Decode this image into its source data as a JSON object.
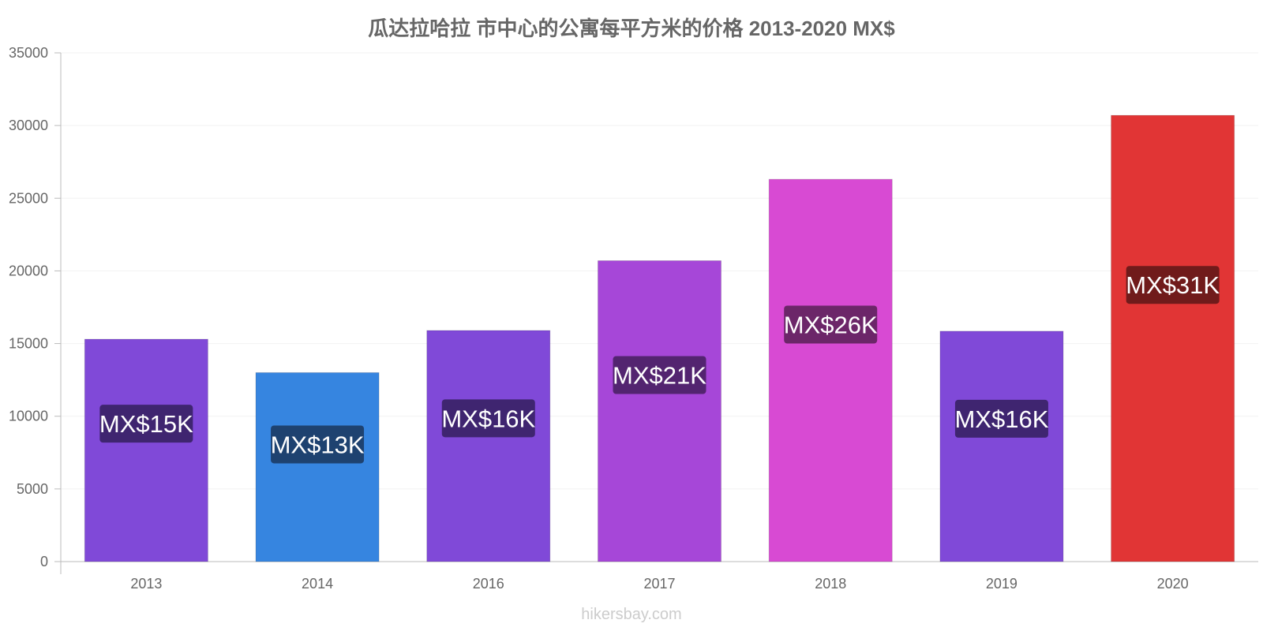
{
  "chart_data": {
    "type": "bar",
    "title": "瓜达拉哈拉 市中心的公寓每平方米的价格 2013-2020 MX$",
    "xlabel": "",
    "ylabel": "",
    "ylim": [
      0,
      35000
    ],
    "yticks": [
      "0",
      "5000",
      "10000",
      "15000",
      "20000",
      "25000",
      "30000",
      "35000"
    ],
    "categories": [
      "2013",
      "2014",
      "2016",
      "2017",
      "2018",
      "2019",
      "2020"
    ],
    "values": [
      15300,
      13000,
      15900,
      20700,
      26300,
      15850,
      30700
    ],
    "data_labels": [
      "MX$15K",
      "MX$13K",
      "MX$16K",
      "MX$21K",
      "MX$26K",
      "MX$16K",
      "MX$31K"
    ],
    "bar_colors": [
      "#8049d8",
      "#3685e0",
      "#8049d8",
      "#a647d8",
      "#d84ad3",
      "#8049d8",
      "#e13535"
    ],
    "label_bg_colors": [
      "#3f2570",
      "#1e4270",
      "#3f2570",
      "#532470",
      "#6c2669",
      "#3f2570",
      "#701b1b"
    ],
    "grid": true,
    "legend": "none"
  },
  "footer": {
    "credit": "hikersbay.com"
  }
}
